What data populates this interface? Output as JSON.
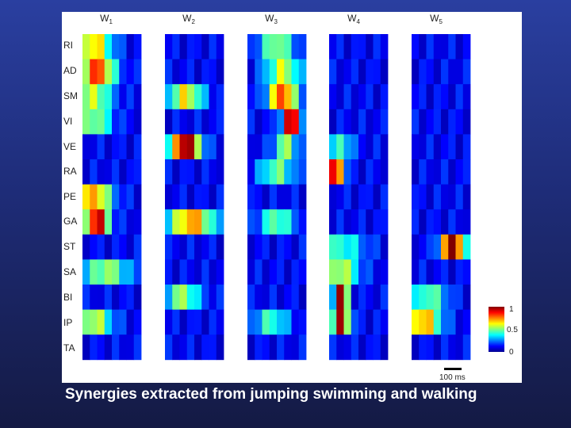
{
  "figure": {
    "column_labels": [
      {
        "base": "W",
        "sub": "1"
      },
      {
        "base": "W",
        "sub": "2"
      },
      {
        "base": "W",
        "sub": "3"
      },
      {
        "base": "W",
        "sub": "4"
      },
      {
        "base": "W",
        "sub": "5"
      }
    ],
    "row_labels": [
      "RI",
      "AD",
      "SM",
      "VI",
      "VE",
      "RA",
      "PE",
      "GA",
      "ST",
      "SA",
      "BI",
      "IP",
      "TA"
    ],
    "colorbar": {
      "max_label": "1",
      "mid_label": "0.5",
      "min_label": "0"
    },
    "scalebar_label": "100 ms"
  },
  "caption": "Synergies extracted from jumping swimming and walking"
}
